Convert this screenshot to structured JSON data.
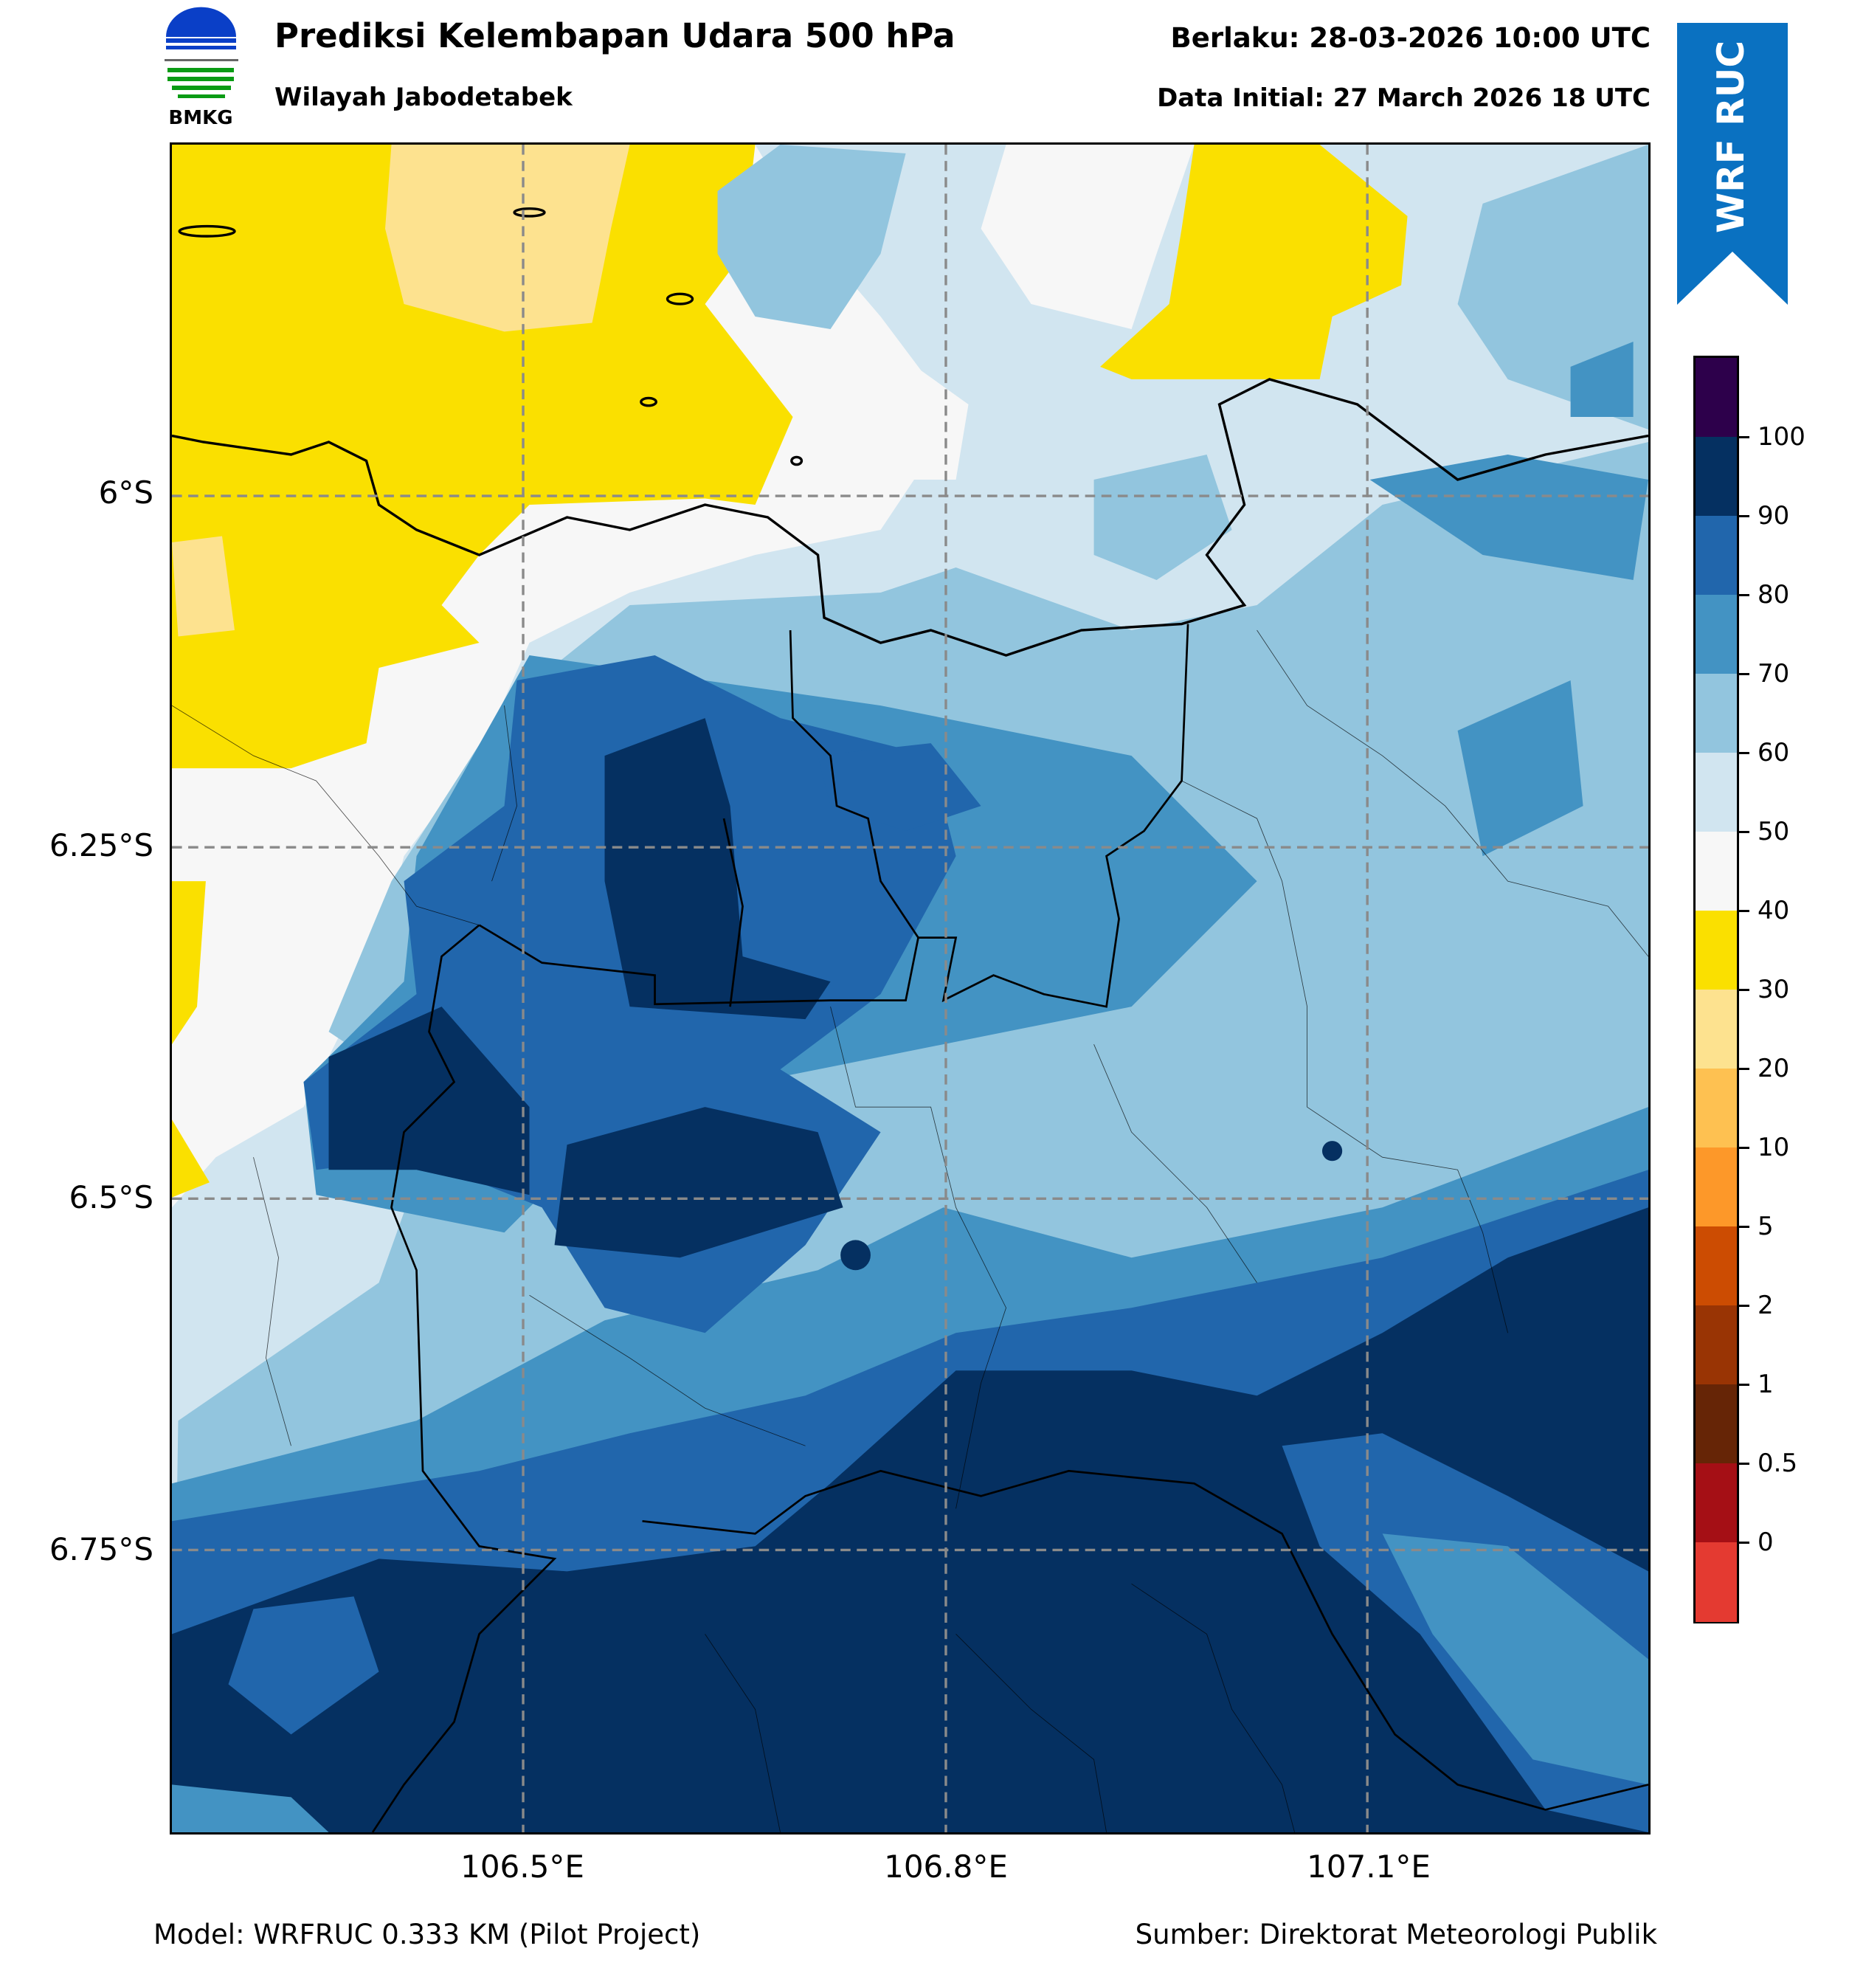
{
  "header": {
    "title": "Prediksi Kelembapan Udara 500 hPa",
    "subtitle": "Wilayah Jabodetabek",
    "valid_time": "Berlaku: 28-03-2026 10:00 UTC",
    "initial_time": "Data Initial: 27 March 2026 18 UTC",
    "logo_text": "BMKG",
    "banner_text": "WRF RUC",
    "banner_color": "#0a71c1"
  },
  "axes": {
    "y_labels": [
      "6°S",
      "6.25°S",
      "6.5°S",
      "6.75°S"
    ],
    "x_labels": [
      "106.5°E",
      "106.8°E",
      "107.1°E"
    ]
  },
  "colorbar": {
    "colors": [
      "#2d004b",
      "#053061",
      "#2166ac",
      "#4393c3",
      "#92c5de",
      "#d1e5f0",
      "#f7f7f7",
      "#fae000",
      "#fde28f",
      "#fec151",
      "#fd9829",
      "#cc4c02",
      "#993404",
      "#662506",
      "#a50f15",
      "#e43a31"
    ],
    "labels": [
      "100",
      "90",
      "80",
      "70",
      "60",
      "50",
      "40",
      "30",
      "20",
      "10",
      "5",
      "2",
      "1",
      "0.5",
      "0"
    ]
  },
  "footer": {
    "model": "Model: WRFRUC 0.333 KM (Pilot Project)",
    "source": "Sumber: Direktorat Meteorologi Publik"
  }
}
